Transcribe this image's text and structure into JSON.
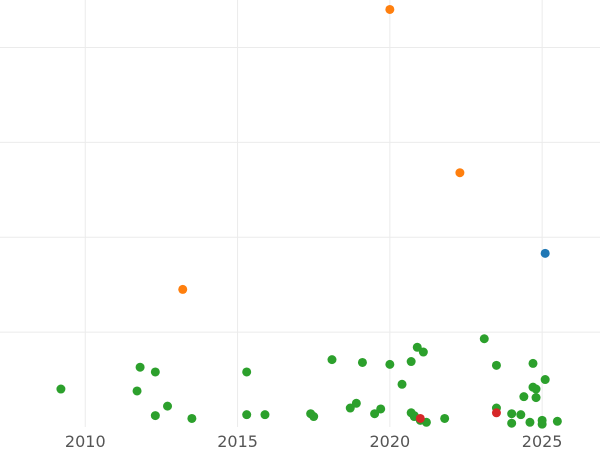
{
  "chart_data": {
    "type": "scatter",
    "title": "",
    "xlabel": "",
    "ylabel": "",
    "xlim": [
      2007.2,
      2026.9
    ],
    "ylim": [
      0,
      4.5
    ],
    "x_ticks": [
      2010,
      2015,
      2020,
      2025
    ],
    "x_tick_labels": [
      "2010",
      "2015",
      "2020",
      "2025"
    ],
    "y_gridlines": [
      1,
      2,
      3,
      4
    ],
    "y_tick_labels_visible": false,
    "grid": true,
    "legend": "none",
    "series": [
      {
        "color": "#2ca02c",
        "points": [
          [
            2009.2,
            0.4
          ],
          [
            2011.7,
            0.38
          ],
          [
            2011.8,
            0.63
          ],
          [
            2012.3,
            0.58
          ],
          [
            2012.3,
            0.12
          ],
          [
            2012.7,
            0.22
          ],
          [
            2013.5,
            0.09
          ],
          [
            2015.3,
            0.58
          ],
          [
            2015.3,
            0.13
          ],
          [
            2015.9,
            0.13
          ],
          [
            2017.4,
            0.14
          ],
          [
            2017.5,
            0.11
          ],
          [
            2018.1,
            0.71
          ],
          [
            2018.7,
            0.2
          ],
          [
            2018.9,
            0.25
          ],
          [
            2019.1,
            0.68
          ],
          [
            2019.5,
            0.14
          ],
          [
            2019.7,
            0.19
          ],
          [
            2020.0,
            0.66
          ],
          [
            2020.4,
            0.45
          ],
          [
            2020.7,
            0.69
          ],
          [
            2020.7,
            0.15
          ],
          [
            2020.8,
            0.11
          ],
          [
            2020.9,
            0.84
          ],
          [
            2021.0,
            0.07
          ],
          [
            2021.1,
            0.79
          ],
          [
            2021.2,
            0.05
          ],
          [
            2021.8,
            0.09
          ],
          [
            2023.1,
            0.93
          ],
          [
            2023.5,
            0.65
          ],
          [
            2023.5,
            0.2
          ],
          [
            2024.0,
            0.14
          ],
          [
            2024.0,
            0.04
          ],
          [
            2024.3,
            0.13
          ],
          [
            2024.4,
            0.32
          ],
          [
            2024.7,
            0.42
          ],
          [
            2024.7,
            0.67
          ],
          [
            2024.8,
            0.4
          ],
          [
            2024.8,
            0.31
          ],
          [
            2025.0,
            0.07
          ],
          [
            2025.0,
            0.03
          ],
          [
            2025.1,
            0.5
          ],
          [
            2025.5,
            0.06
          ],
          [
            2024.6,
            0.05
          ],
          [
            2020.8,
            0.12
          ]
        ]
      },
      {
        "color": "#ff7f0e",
        "points": [
          [
            2013.2,
            1.45
          ],
          [
            2020.0,
            4.4
          ],
          [
            2022.3,
            2.68
          ]
        ]
      },
      {
        "color": "#1f77b4",
        "points": [
          [
            2025.1,
            1.83
          ]
        ]
      },
      {
        "color": "#d62728",
        "points": [
          [
            2021.0,
            0.09
          ],
          [
            2023.5,
            0.15
          ]
        ]
      }
    ]
  }
}
